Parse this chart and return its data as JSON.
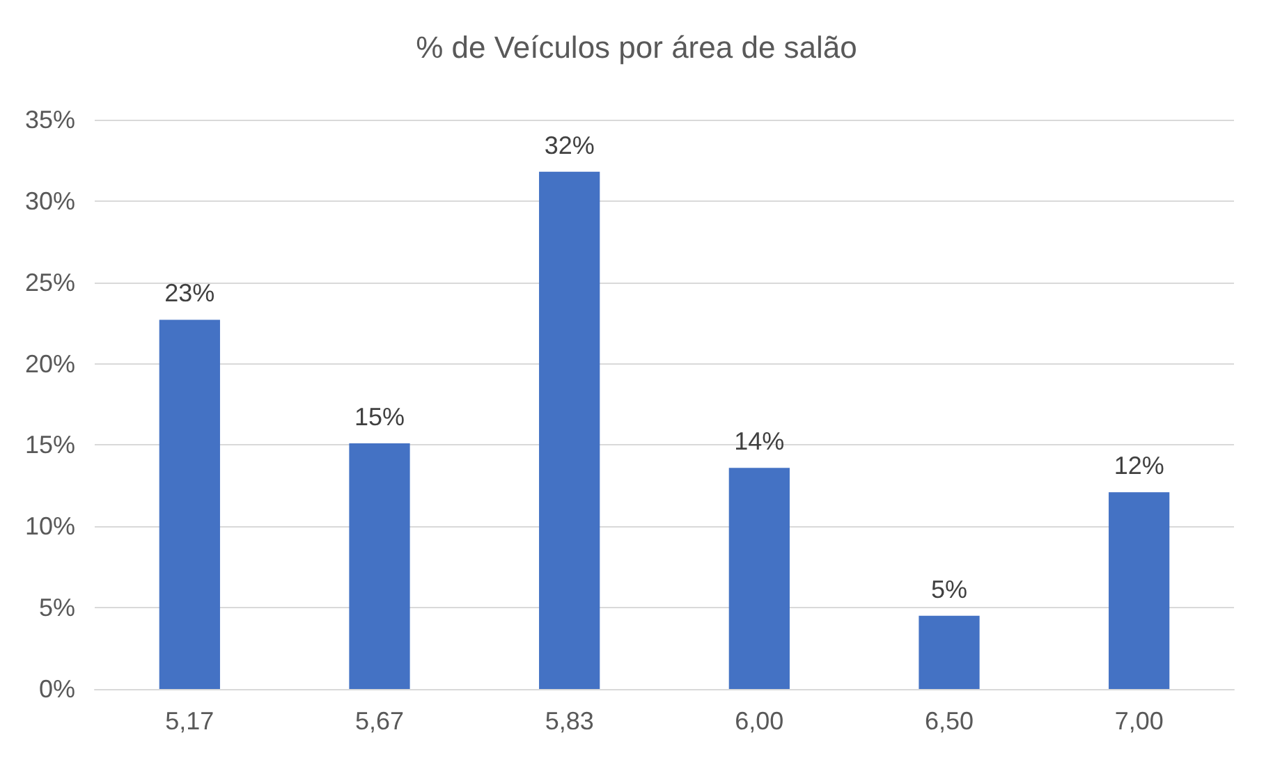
{
  "chart_data": {
    "type": "bar",
    "title": "% de Veículos por área de salão",
    "categories": [
      "5,17",
      "5,67",
      "5,83",
      "6,00",
      "6,50",
      "7,00"
    ],
    "values": [
      22.7,
      15.1,
      31.8,
      13.6,
      4.5,
      12.1
    ],
    "value_labels": [
      "23%",
      "15%",
      "32%",
      "14%",
      "5%",
      "12%"
    ],
    "color": "#4472c4",
    "ylim": [
      0,
      35
    ],
    "yticks": [
      {
        "value": 0,
        "label": "0%"
      },
      {
        "value": 5,
        "label": "5%"
      },
      {
        "value": 10,
        "label": "10%"
      },
      {
        "value": 15,
        "label": "15%"
      },
      {
        "value": 20,
        "label": "20%"
      },
      {
        "value": 25,
        "label": "25%"
      },
      {
        "value": 30,
        "label": "30%"
      },
      {
        "value": 35,
        "label": "35%"
      }
    ],
    "grid": "y"
  }
}
